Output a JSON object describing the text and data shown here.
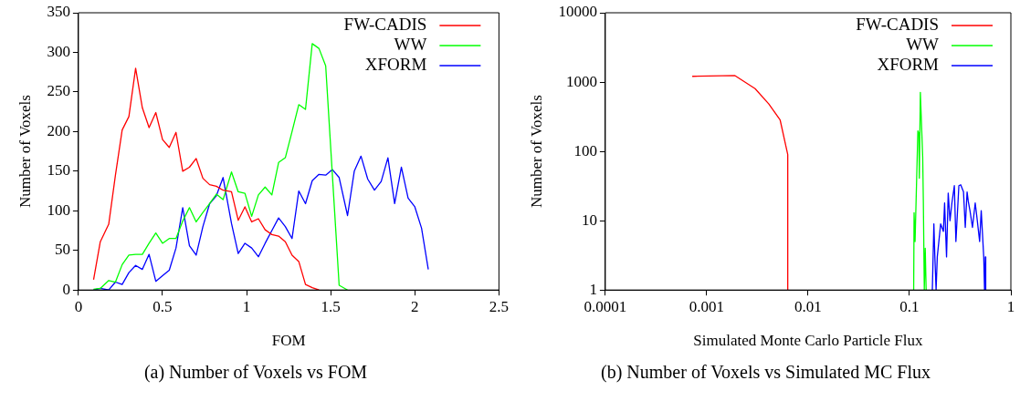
{
  "chart_data": [
    {
      "type": "line",
      "xlabel": "FOM",
      "ylabel": "Number of Voxels",
      "annotations": [
        "(a) Number of Voxels vs FOM"
      ],
      "xlim": [
        0,
        2.5
      ],
      "xticks": [
        0,
        0.5,
        1,
        1.5,
        2,
        2.5
      ],
      "ylim": [
        0,
        350
      ],
      "yticks": [
        0,
        50,
        100,
        150,
        200,
        250,
        300,
        350
      ],
      "grid": false,
      "legend": "top right",
      "series": [
        {
          "name": "FW-CADIS",
          "color": "#ff0000",
          "x": [
            0.09,
            0.13,
            0.18,
            0.22,
            0.26,
            0.3,
            0.34,
            0.38,
            0.42,
            0.46,
            0.5,
            0.54,
            0.58,
            0.62,
            0.66,
            0.7,
            0.74,
            0.78,
            0.82,
            0.86,
            0.91,
            0.95,
            0.99,
            1.03,
            1.07,
            1.11,
            1.15,
            1.19,
            1.23,
            1.27,
            1.31,
            1.35,
            1.39,
            1.43
          ],
          "values": [
            13,
            61,
            83,
            145,
            202,
            219,
            280,
            230,
            205,
            224,
            190,
            180,
            199,
            150,
            155,
            166,
            141,
            133,
            131,
            126,
            124,
            88,
            105,
            86,
            90,
            76,
            70,
            68,
            61,
            44,
            36,
            7,
            3,
            0
          ]
        },
        {
          "name": "WW",
          "color": "#00ff00",
          "x": [
            0.09,
            0.13,
            0.18,
            0.22,
            0.26,
            0.3,
            0.34,
            0.38,
            0.42,
            0.46,
            0.5,
            0.54,
            0.58,
            0.62,
            0.66,
            0.7,
            0.74,
            0.78,
            0.82,
            0.86,
            0.91,
            0.95,
            0.99,
            1.03,
            1.07,
            1.11,
            1.15,
            1.19,
            1.23,
            1.27,
            1.31,
            1.35,
            1.39,
            1.43,
            1.47,
            1.55,
            1.6
          ],
          "values": [
            1,
            2,
            12,
            10,
            32,
            44,
            45,
            45,
            59,
            72,
            59,
            65,
            65,
            87,
            104,
            86,
            98,
            109,
            121,
            114,
            149,
            124,
            122,
            93,
            120,
            130,
            120,
            161,
            167,
            200,
            234,
            228,
            311,
            305,
            283,
            6,
            0
          ]
        },
        {
          "name": "XFORM",
          "color": "#0000ff",
          "x": [
            0.09,
            0.13,
            0.18,
            0.22,
            0.26,
            0.3,
            0.34,
            0.38,
            0.42,
            0.46,
            0.5,
            0.54,
            0.58,
            0.62,
            0.66,
            0.7,
            0.74,
            0.78,
            0.82,
            0.86,
            0.91,
            0.95,
            0.99,
            1.03,
            1.07,
            1.11,
            1.15,
            1.19,
            1.23,
            1.27,
            1.31,
            1.35,
            1.39,
            1.43,
            1.47,
            1.51,
            1.55,
            1.6,
            1.64,
            1.68,
            1.72,
            1.76,
            1.8,
            1.84,
            1.88,
            1.92,
            1.96,
            2.0,
            2.04,
            2.08
          ],
          "values": [
            0,
            2,
            0,
            10,
            7,
            22,
            31,
            26,
            45,
            11,
            18,
            25,
            53,
            104,
            56,
            44,
            80,
            109,
            119,
            142,
            84,
            46,
            59,
            53,
            42,
            59,
            75,
            91,
            80,
            65,
            125,
            109,
            138,
            146,
            145,
            152,
            142,
            94,
            150,
            169,
            140,
            126,
            137,
            167,
            109,
            155,
            116,
            105,
            78,
            26
          ]
        }
      ]
    },
    {
      "type": "line",
      "xlabel": "Simulated Monte Carlo Particle Flux",
      "ylabel": "Number of Voxels",
      "annotations": [
        "(b) Number of Voxels vs Simulated MC Flux"
      ],
      "log": "xy",
      "xlim": [
        0.0001,
        1
      ],
      "xticks": [
        0.0001,
        0.001,
        0.01,
        0.1,
        1
      ],
      "ylim": [
        1,
        10000
      ],
      "yticks": [
        1,
        10,
        100,
        1000,
        10000
      ],
      "grid": false,
      "legend": "top right",
      "series": [
        {
          "name": "FW-CADIS",
          "color": "#ff0000",
          "x": [
            0.00072,
            0.0019,
            0.003,
            0.0041,
            0.0053,
            0.0063,
            0.0063
          ],
          "values": [
            1210,
            1240,
            805,
            483,
            283,
            90,
            1
          ]
        },
        {
          "name": "WW",
          "color": "#00ff00",
          "x": [
            0.11,
            0.111,
            0.1135,
            0.121,
            0.124,
            0.125,
            0.128,
            0.135,
            0.137,
            0.14,
            0.143,
            0.146
          ],
          "values": [
            1,
            13,
            5,
            198,
            180,
            41,
            711,
            83,
            19,
            1,
            4,
            1
          ]
        },
        {
          "name": "XFORM",
          "color": "#0000ff",
          "x": [
            0.168,
            0.174,
            0.178,
            0.183,
            0.188,
            0.203,
            0.216,
            0.222,
            0.232,
            0.241,
            0.251,
            0.262,
            0.277,
            0.287,
            0.307,
            0.32,
            0.341,
            0.355,
            0.37,
            0.38,
            0.395,
            0.418,
            0.445,
            0.46,
            0.492,
            0.51,
            0.54,
            0.55,
            0.56,
            0.565
          ],
          "values": [
            1,
            9,
            3,
            1,
            3,
            9,
            7,
            18,
            3,
            25,
            10,
            18,
            32,
            5,
            32,
            33,
            26,
            8,
            26,
            19,
            14,
            8,
            18,
            12,
            5,
            14,
            3,
            1,
            3,
            1
          ]
        }
      ]
    }
  ]
}
